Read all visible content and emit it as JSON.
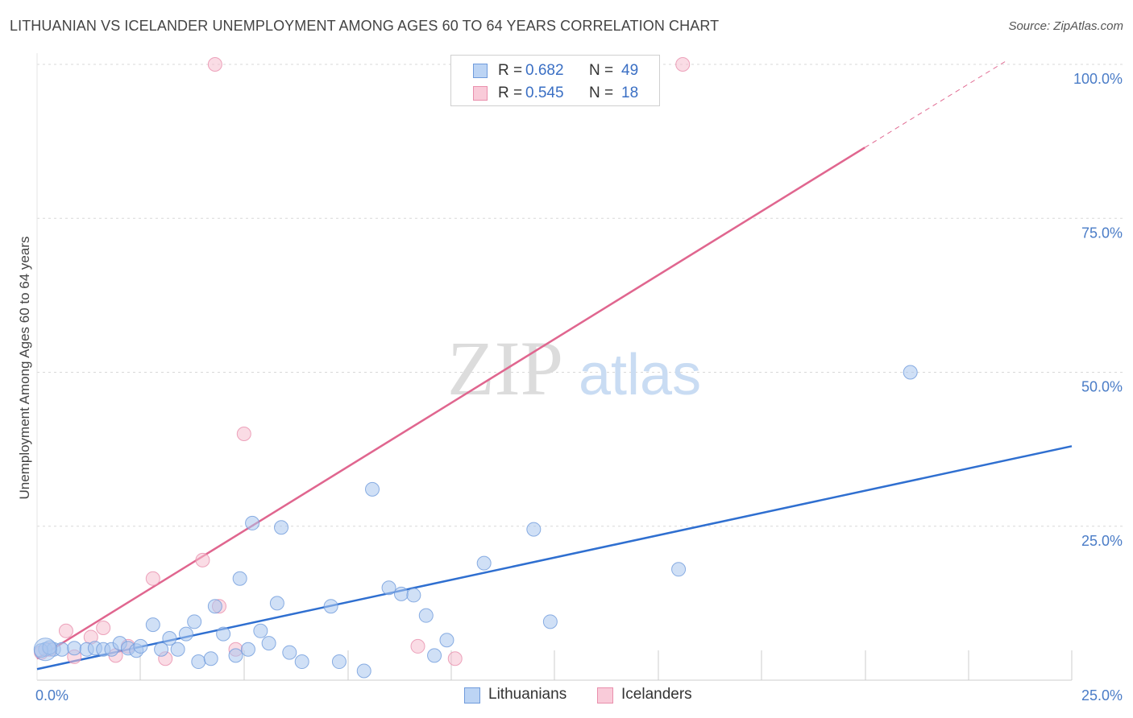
{
  "title": "LITHUANIAN VS ICELANDER UNEMPLOYMENT AMONG AGES 60 TO 64 YEARS CORRELATION CHART",
  "source": "Source: ZipAtlas.com",
  "watermark": {
    "zip": "ZIP",
    "atlas": "atlas"
  },
  "legend": {
    "r_label": "R =",
    "n_label": "N =",
    "lithuanians": {
      "r": "0.682",
      "n": "49"
    },
    "icelanders": {
      "r": "0.545",
      "n": "18"
    }
  },
  "colors": {
    "blue_fill": "#a9c7ef",
    "blue_stroke": "#6f9bdc",
    "blue_line": "#2f6fd0",
    "pink_fill": "#f6bfd0",
    "pink_stroke": "#e98fac",
    "pink_line": "#e0668f",
    "grid": "#d8d8d8",
    "tick_text": "#4a7cc7"
  },
  "chart_data": {
    "type": "scatter",
    "title": "LITHUANIAN VS ICELANDER UNEMPLOYMENT AMONG AGES 60 TO 64 YEARS CORRELATION CHART",
    "xlabel": "",
    "ylabel": "Unemployment Among Ages 60 to 64 years",
    "xlim": [
      0,
      25
    ],
    "ylim": [
      0,
      100
    ],
    "x_tick_labels": [
      "0.0%",
      "25.0%"
    ],
    "y_ticks": [
      25,
      50,
      75,
      100
    ],
    "y_tick_labels": [
      "25.0%",
      "50.0%",
      "75.0%",
      "100.0%"
    ],
    "series": [
      {
        "name": "Lithuanians",
        "points": [
          [
            0.2,
            5.0
          ],
          [
            0.4,
            5.0
          ],
          [
            0.6,
            5.0
          ],
          [
            0.9,
            5.2
          ],
          [
            1.2,
            5.0
          ],
          [
            1.4,
            5.2
          ],
          [
            1.6,
            5.0
          ],
          [
            1.8,
            5.0
          ],
          [
            2.0,
            6.0
          ],
          [
            2.2,
            5.2
          ],
          [
            2.4,
            4.8
          ],
          [
            2.5,
            5.5
          ],
          [
            2.8,
            9.0
          ],
          [
            3.0,
            5.0
          ],
          [
            3.2,
            6.8
          ],
          [
            3.4,
            5.0
          ],
          [
            3.6,
            7.5
          ],
          [
            3.8,
            9.5
          ],
          [
            3.9,
            3.0
          ],
          [
            4.2,
            3.5
          ],
          [
            4.3,
            12.0
          ],
          [
            4.5,
            7.5
          ],
          [
            4.8,
            4.0
          ],
          [
            4.9,
            16.5
          ],
          [
            5.1,
            5.0
          ],
          [
            5.2,
            25.5
          ],
          [
            5.4,
            8.0
          ],
          [
            5.6,
            6.0
          ],
          [
            5.8,
            12.5
          ],
          [
            5.9,
            24.8
          ],
          [
            6.1,
            4.5
          ],
          [
            6.4,
            3.0
          ],
          [
            7.1,
            12.0
          ],
          [
            7.3,
            3.0
          ],
          [
            7.9,
            1.5
          ],
          [
            8.1,
            31.0
          ],
          [
            8.5,
            15.0
          ],
          [
            8.8,
            14.0
          ],
          [
            9.1,
            13.8
          ],
          [
            9.4,
            10.5
          ],
          [
            9.6,
            4.0
          ],
          [
            9.9,
            6.5
          ],
          [
            10.8,
            19.0
          ],
          [
            12.0,
            24.5
          ],
          [
            12.4,
            9.5
          ],
          [
            15.5,
            18.0
          ],
          [
            21.1,
            50.0
          ],
          [
            0.1,
            4.8
          ],
          [
            0.3,
            5.3
          ]
        ]
      },
      {
        "name": "Icelanders",
        "points": [
          [
            0.1,
            4.5
          ],
          [
            0.7,
            8.0
          ],
          [
            0.9,
            3.8
          ],
          [
            1.3,
            7.0
          ],
          [
            1.6,
            8.5
          ],
          [
            1.9,
            4.0
          ],
          [
            2.2,
            5.5
          ],
          [
            2.8,
            16.5
          ],
          [
            3.1,
            3.5
          ],
          [
            4.0,
            19.5
          ],
          [
            4.3,
            100.0
          ],
          [
            4.4,
            12.0
          ],
          [
            4.8,
            5.0
          ],
          [
            5.0,
            40.0
          ],
          [
            9.2,
            5.5
          ],
          [
            10.1,
            3.5
          ],
          [
            15.6,
            100.0
          ],
          [
            0.3,
            5.0
          ]
        ]
      }
    ],
    "trend_lines": [
      {
        "series": "Lithuanians",
        "x": [
          0,
          25
        ],
        "y": [
          1.8,
          38.0
        ],
        "style": "solid"
      },
      {
        "series": "Icelanders",
        "x": [
          0,
          20
        ],
        "y": [
          3.5,
          86.5
        ],
        "style": "solid"
      },
      {
        "series": "Icelanders",
        "x": [
          20,
          23.4
        ],
        "y": [
          86.5,
          100.5
        ],
        "style": "dashed"
      }
    ]
  },
  "bottom_legend": {
    "lithuanians": "Lithuanians",
    "icelanders": "Icelanders"
  }
}
